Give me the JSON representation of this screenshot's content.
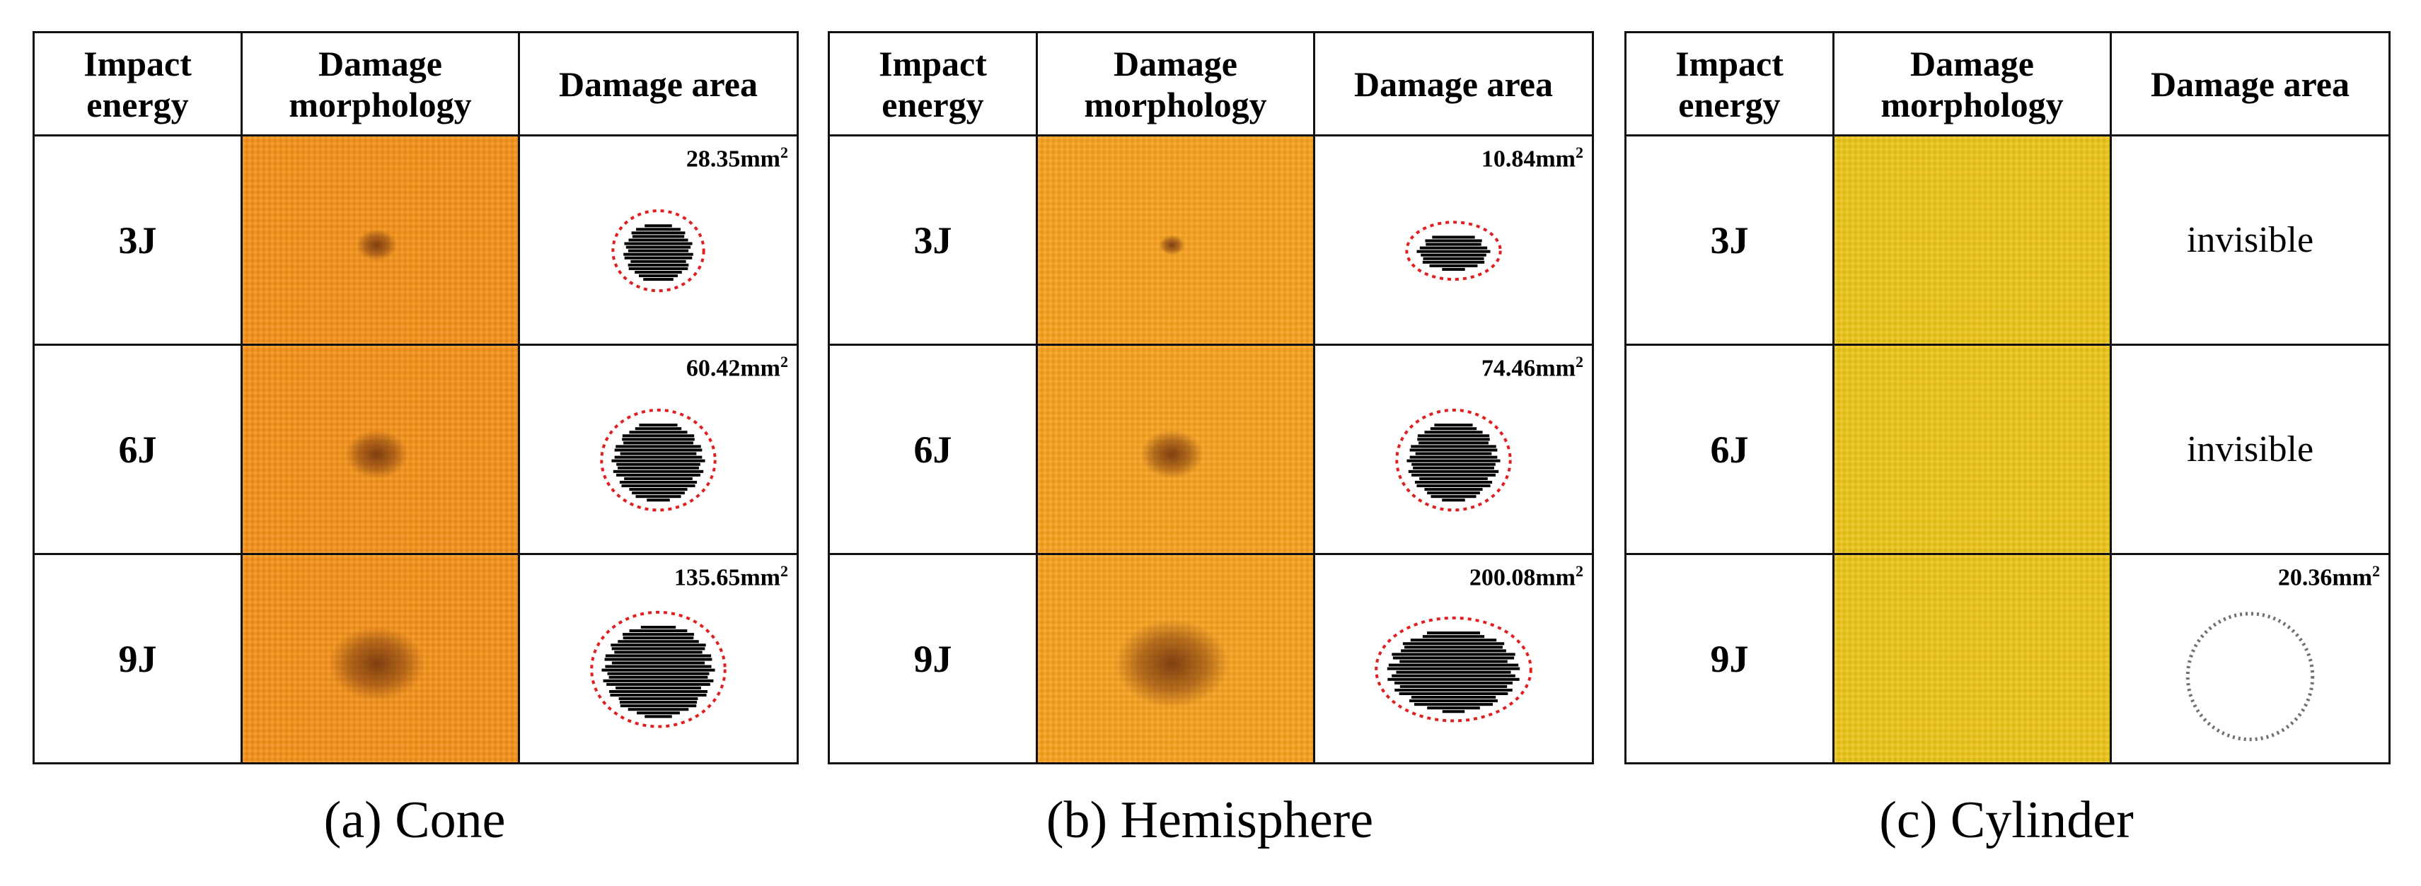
{
  "headers": {
    "impact_energy": "Impact energy",
    "damage_morphology": "Damage morphology",
    "damage_area": "Damage area"
  },
  "panels": [
    {
      "caption": "(a) Cone",
      "fabric_color": "#f0911c",
      "rows": [
        {
          "energy": "3J",
          "area": "28.35mm",
          "area_sup": "2",
          "damage": "small"
        },
        {
          "energy": "6J",
          "area": "60.42mm",
          "area_sup": "2",
          "damage": "medium"
        },
        {
          "energy": "9J",
          "area": "135.65mm",
          "area_sup": "2",
          "damage": "large"
        }
      ]
    },
    {
      "caption": "(b) Hemisphere",
      "fabric_color": "#f3a022",
      "rows": [
        {
          "energy": "3J",
          "area": "10.84mm",
          "area_sup": "2",
          "damage": "tiny"
        },
        {
          "energy": "6J",
          "area": "74.46mm",
          "area_sup": "2",
          "damage": "medium"
        },
        {
          "energy": "9J",
          "area": "200.08mm",
          "area_sup": "2",
          "damage": "xlarge"
        }
      ]
    },
    {
      "caption": "(c) Cylinder",
      "fabric_color": "#e8c21c",
      "rows": [
        {
          "energy": "3J",
          "area_text": "invisible",
          "damage": "none"
        },
        {
          "energy": "6J",
          "area_text": "invisible",
          "damage": "none"
        },
        {
          "energy": "9J",
          "area": "20.36mm",
          "area_sup": "2",
          "damage": "ring"
        }
      ]
    }
  ],
  "colors": {
    "dashed_outline": "#e02020",
    "damage_spot": "#000000",
    "dent": "#7a3a10"
  }
}
